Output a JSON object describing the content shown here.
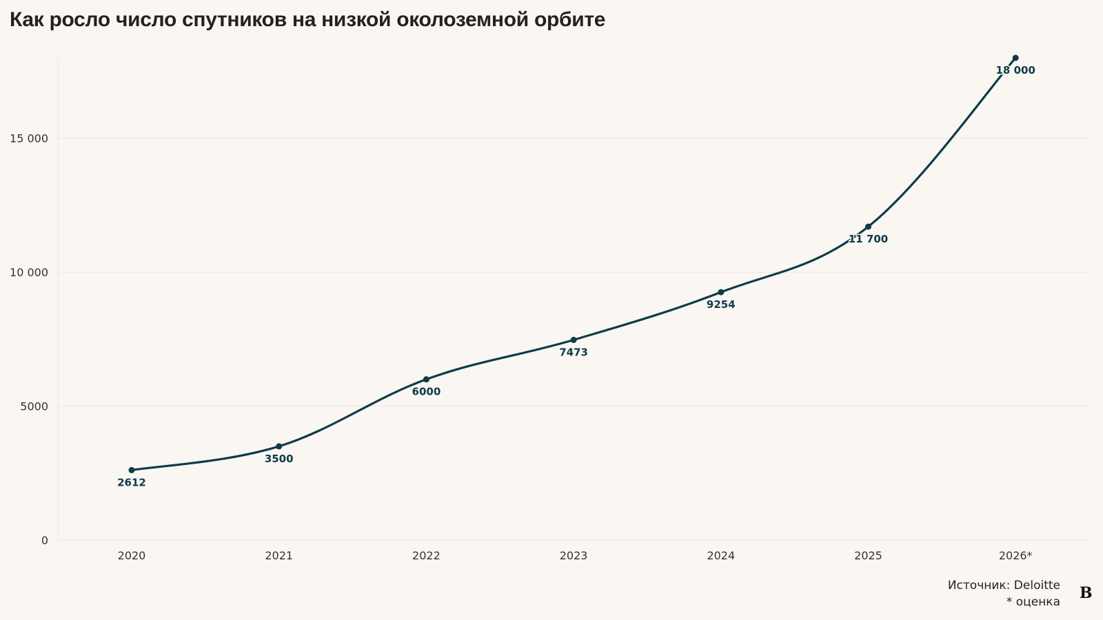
{
  "chart_data": {
    "type": "line",
    "title": "Как росло число спутников на низкой околоземной орбите",
    "categories": [
      "2020",
      "2021",
      "2022",
      "2023",
      "2024",
      "2025",
      "2026*"
    ],
    "values": [
      2612,
      3500,
      6000,
      7473,
      9254,
      11700,
      18000
    ],
    "value_labels": [
      "2612",
      "3500",
      "6000",
      "7473",
      "9254",
      "11 700",
      "18 000"
    ],
    "yticks": [
      0,
      5000,
      10000,
      15000
    ],
    "ytick_labels": [
      "0",
      "5000",
      "10 000",
      "15 000"
    ],
    "ylim": [
      0,
      18000
    ],
    "xlabel": "",
    "ylabel": "",
    "grid": true,
    "legend": "none"
  },
  "footer": {
    "source": "Источник: Deloitte",
    "note": "* оценка"
  },
  "logo": {
    "text": "B"
  },
  "colors": {
    "background": "#faf6f2",
    "line": "#0d3b48",
    "grid": "#ece7e2",
    "text": "#222222"
  }
}
